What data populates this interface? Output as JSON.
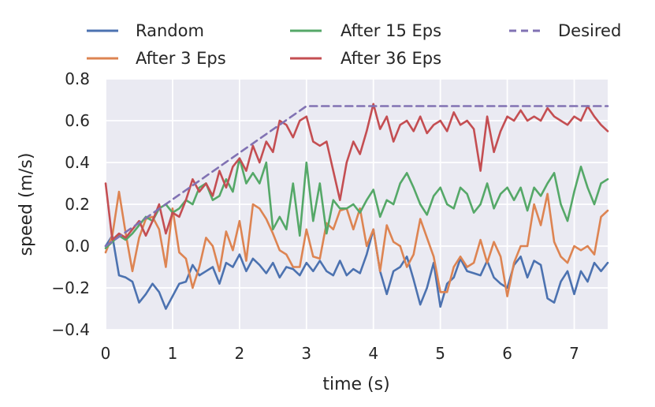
{
  "chart_data": {
    "type": "line",
    "title": "",
    "xlabel": "time (s)",
    "ylabel": "speed (m/s)",
    "xlim": [
      0,
      7.5
    ],
    "ylim": [
      -0.4,
      0.8
    ],
    "xticks": [
      0,
      1,
      2,
      3,
      4,
      5,
      6,
      7
    ],
    "xtick_labels": [
      "0",
      "1",
      "2",
      "3",
      "4",
      "5",
      "6",
      "7"
    ],
    "yticks": [
      -0.4,
      -0.2,
      0.0,
      0.2,
      0.4,
      0.6,
      0.8
    ],
    "ytick_labels": [
      "−0.4",
      "−0.2",
      "0.0",
      "0.2",
      "0.4",
      "0.6",
      "0.8"
    ],
    "grid": true,
    "legend_position": "top",
    "series": [
      {
        "name": "Random",
        "color": "#4c72b0",
        "dash": "solid",
        "x": [
          0,
          0.1,
          0.2,
          0.3,
          0.4,
          0.5,
          0.6,
          0.7,
          0.8,
          0.9,
          1.0,
          1.1,
          1.2,
          1.3,
          1.4,
          1.5,
          1.6,
          1.7,
          1.8,
          1.9,
          2.0,
          2.1,
          2.2,
          2.3,
          2.4,
          2.5,
          2.6,
          2.7,
          2.8,
          2.9,
          3.0,
          3.1,
          3.2,
          3.3,
          3.4,
          3.5,
          3.6,
          3.7,
          3.8,
          3.9,
          4.0,
          4.1,
          4.2,
          4.3,
          4.4,
          4.5,
          4.6,
          4.7,
          4.8,
          4.9,
          5.0,
          5.1,
          5.2,
          5.3,
          5.4,
          5.5,
          5.6,
          5.7,
          5.8,
          5.9,
          6.0,
          6.1,
          6.2,
          6.3,
          6.4,
          6.5,
          6.6,
          6.7,
          6.8,
          6.9,
          7.0,
          7.1,
          7.2,
          7.3,
          7.4,
          7.5
        ],
        "y": [
          0.0,
          0.05,
          -0.14,
          -0.15,
          -0.17,
          -0.27,
          -0.23,
          -0.18,
          -0.22,
          -0.3,
          -0.24,
          -0.18,
          -0.17,
          -0.09,
          -0.14,
          -0.12,
          -0.1,
          -0.18,
          -0.08,
          -0.1,
          -0.04,
          -0.12,
          -0.06,
          -0.09,
          -0.13,
          -0.08,
          -0.15,
          -0.1,
          -0.11,
          -0.14,
          -0.08,
          -0.12,
          -0.07,
          -0.12,
          -0.14,
          -0.07,
          -0.14,
          -0.11,
          -0.13,
          -0.04,
          0.08,
          -0.12,
          -0.23,
          -0.12,
          -0.1,
          -0.05,
          -0.16,
          -0.28,
          -0.2,
          -0.08,
          -0.29,
          -0.18,
          -0.15,
          -0.06,
          -0.12,
          -0.13,
          -0.14,
          -0.07,
          -0.15,
          -0.18,
          -0.2,
          -0.09,
          -0.05,
          -0.15,
          -0.07,
          -0.09,
          -0.25,
          -0.27,
          -0.17,
          -0.12,
          -0.23,
          -0.12,
          -0.17,
          -0.08,
          -0.12,
          -0.08
        ]
      },
      {
        "name": "After 3 Eps",
        "color": "#dd8452",
        "dash": "solid",
        "x": [
          0,
          0.1,
          0.2,
          0.3,
          0.4,
          0.5,
          0.6,
          0.7,
          0.8,
          0.9,
          1.0,
          1.1,
          1.2,
          1.3,
          1.4,
          1.5,
          1.6,
          1.7,
          1.8,
          1.9,
          2.0,
          2.1,
          2.2,
          2.3,
          2.4,
          2.5,
          2.6,
          2.7,
          2.8,
          2.9,
          3.0,
          3.1,
          3.2,
          3.3,
          3.4,
          3.5,
          3.6,
          3.7,
          3.8,
          3.9,
          4.0,
          4.1,
          4.2,
          4.3,
          4.4,
          4.5,
          4.6,
          4.7,
          4.8,
          4.9,
          5.0,
          5.1,
          5.2,
          5.3,
          5.4,
          5.5,
          5.6,
          5.7,
          5.8,
          5.9,
          6.0,
          6.1,
          6.2,
          6.3,
          6.4,
          6.5,
          6.6,
          6.7,
          6.8,
          6.9,
          7.0,
          7.1,
          7.2,
          7.3,
          7.4,
          7.5
        ],
        "y": [
          -0.03,
          0.05,
          0.26,
          0.06,
          -0.12,
          0.04,
          0.13,
          0.14,
          0.08,
          -0.1,
          0.18,
          -0.03,
          -0.06,
          -0.2,
          -0.1,
          0.04,
          0.0,
          -0.12,
          0.07,
          -0.02,
          0.12,
          -0.07,
          0.2,
          0.18,
          0.13,
          0.06,
          -0.02,
          -0.04,
          -0.1,
          -0.1,
          0.08,
          -0.05,
          -0.06,
          0.11,
          0.08,
          0.17,
          0.18,
          0.08,
          0.18,
          0.0,
          0.08,
          -0.12,
          0.1,
          0.02,
          0.0,
          -0.1,
          -0.04,
          0.13,
          0.04,
          -0.05,
          -0.22,
          -0.22,
          -0.1,
          -0.05,
          -0.1,
          -0.08,
          0.03,
          -0.08,
          0.02,
          -0.05,
          -0.24,
          -0.08,
          0.0,
          0.0,
          0.2,
          0.1,
          0.25,
          0.02,
          -0.05,
          -0.08,
          0.0,
          -0.02,
          0.0,
          -0.04,
          0.14,
          0.17
        ]
      },
      {
        "name": "After 15 Eps",
        "color": "#55a868",
        "dash": "solid",
        "x": [
          0,
          0.1,
          0.2,
          0.3,
          0.4,
          0.5,
          0.6,
          0.7,
          0.8,
          0.9,
          1.0,
          1.1,
          1.2,
          1.3,
          1.4,
          1.5,
          1.6,
          1.7,
          1.8,
          1.9,
          2.0,
          2.1,
          2.2,
          2.3,
          2.4,
          2.5,
          2.6,
          2.7,
          2.8,
          2.9,
          3.0,
          3.1,
          3.2,
          3.3,
          3.4,
          3.5,
          3.6,
          3.7,
          3.8,
          3.9,
          4.0,
          4.1,
          4.2,
          4.3,
          4.4,
          4.5,
          4.6,
          4.7,
          4.8,
          4.9,
          5.0,
          5.1,
          5.2,
          5.3,
          5.4,
          5.5,
          5.6,
          5.7,
          5.8,
          5.9,
          6.0,
          6.1,
          6.2,
          6.3,
          6.4,
          6.5,
          6.6,
          6.7,
          6.8,
          6.9,
          7.0,
          7.1,
          7.2,
          7.3,
          7.4,
          7.5
        ],
        "y": [
          -0.01,
          0.02,
          0.05,
          0.03,
          0.06,
          0.1,
          0.14,
          0.12,
          0.18,
          0.2,
          0.16,
          0.18,
          0.22,
          0.2,
          0.28,
          0.3,
          0.22,
          0.24,
          0.32,
          0.26,
          0.42,
          0.3,
          0.35,
          0.3,
          0.4,
          0.08,
          0.14,
          0.08,
          0.3,
          0.05,
          0.4,
          0.12,
          0.3,
          0.06,
          0.22,
          0.18,
          0.18,
          0.2,
          0.16,
          0.22,
          0.27,
          0.14,
          0.22,
          0.2,
          0.3,
          0.35,
          0.28,
          0.2,
          0.15,
          0.24,
          0.28,
          0.2,
          0.18,
          0.28,
          0.25,
          0.16,
          0.2,
          0.3,
          0.18,
          0.25,
          0.28,
          0.22,
          0.28,
          0.17,
          0.28,
          0.24,
          0.3,
          0.35,
          0.2,
          0.12,
          0.26,
          0.38,
          0.28,
          0.2,
          0.3,
          0.32
        ]
      },
      {
        "name": "After 36 Eps",
        "color": "#c44e52",
        "dash": "solid",
        "x": [
          0,
          0.1,
          0.2,
          0.3,
          0.4,
          0.5,
          0.6,
          0.7,
          0.8,
          0.9,
          1.0,
          1.1,
          1.2,
          1.3,
          1.4,
          1.5,
          1.6,
          1.7,
          1.8,
          1.9,
          2.0,
          2.1,
          2.2,
          2.3,
          2.4,
          2.5,
          2.6,
          2.7,
          2.8,
          2.9,
          3.0,
          3.1,
          3.2,
          3.3,
          3.4,
          3.5,
          3.6,
          3.7,
          3.8,
          3.9,
          4.0,
          4.1,
          4.2,
          4.3,
          4.4,
          4.5,
          4.6,
          4.7,
          4.8,
          4.9,
          5.0,
          5.1,
          5.2,
          5.3,
          5.4,
          5.5,
          5.6,
          5.7,
          5.8,
          5.9,
          6.0,
          6.1,
          6.2,
          6.3,
          6.4,
          6.5,
          6.6,
          6.7,
          6.8,
          6.9,
          7.0,
          7.1,
          7.2,
          7.3,
          7.4,
          7.5
        ],
        "y": [
          0.3,
          0.03,
          0.06,
          0.04,
          0.08,
          0.12,
          0.05,
          0.12,
          0.2,
          0.06,
          0.16,
          0.14,
          0.22,
          0.32,
          0.26,
          0.3,
          0.24,
          0.36,
          0.28,
          0.38,
          0.42,
          0.36,
          0.48,
          0.4,
          0.5,
          0.45,
          0.6,
          0.58,
          0.52,
          0.6,
          0.62,
          0.5,
          0.48,
          0.5,
          0.36,
          0.22,
          0.4,
          0.5,
          0.44,
          0.55,
          0.68,
          0.56,
          0.62,
          0.5,
          0.58,
          0.6,
          0.55,
          0.62,
          0.54,
          0.58,
          0.6,
          0.55,
          0.64,
          0.58,
          0.6,
          0.56,
          0.36,
          0.62,
          0.45,
          0.55,
          0.62,
          0.6,
          0.65,
          0.6,
          0.62,
          0.6,
          0.66,
          0.62,
          0.6,
          0.58,
          0.62,
          0.6,
          0.67,
          0.62,
          0.58,
          0.55
        ]
      },
      {
        "name": "Desired",
        "color": "#8172b3",
        "dash": "dashed",
        "x": [
          0,
          3,
          7.5
        ],
        "y": [
          0.0,
          0.67,
          0.67
        ]
      }
    ]
  }
}
